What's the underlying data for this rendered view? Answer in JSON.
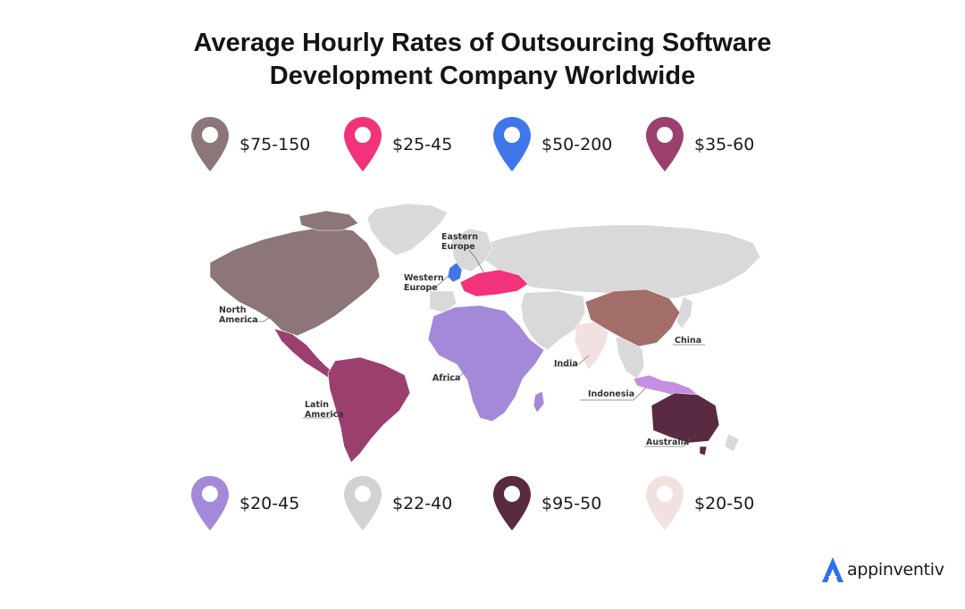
{
  "title": {
    "line1": "Average Hourly Rates of Outsourcing Software",
    "line2": "Development Company Worldwide"
  },
  "legend": [
    {
      "rate": "$75-150",
      "color": "#8c767a"
    },
    {
      "rate": "$25-45",
      "color": "#f2337c"
    },
    {
      "rate": "$50-200",
      "color": "#3f77ea"
    },
    {
      "rate": "$35-60",
      "color": "#9b3f6e"
    },
    {
      "rate": "$20-45",
      "color": "#a589d9"
    },
    {
      "rate": "$22-40",
      "color": "#d2d2d2"
    },
    {
      "rate": "$95-50",
      "color": "#5a2a42"
    },
    {
      "rate": "$20-50",
      "color": "#f2e1e1"
    }
  ],
  "regions": {
    "north_america": {
      "label_1": "North",
      "label_2": "America",
      "color": "#8c767a"
    },
    "latin_america": {
      "label_1": "Latin",
      "label_2": "America",
      "color": "#9b3f6e"
    },
    "western_europe": {
      "label_1": "Western",
      "label_2": "Europe",
      "color": "#3f77ea"
    },
    "eastern_europe": {
      "label_1": "Eastern",
      "label_2": "Europe",
      "color": "#f2337c"
    },
    "africa": {
      "label": "Africa",
      "color": "#a589d9"
    },
    "india": {
      "label": "India",
      "color": "#f2e1e1"
    },
    "china": {
      "label": "China",
      "color": "#a36e6a"
    },
    "indonesia": {
      "label": "Indonesia",
      "color": "#c48fe0"
    },
    "australia": {
      "label": "Australia",
      "color": "#5a2a42"
    },
    "rest_of_world": {
      "color": "#d9d9d9"
    }
  },
  "brand": {
    "name": "appinventiv",
    "icon": "appinventiv-logo-icon",
    "color": "#2f6ef0"
  }
}
